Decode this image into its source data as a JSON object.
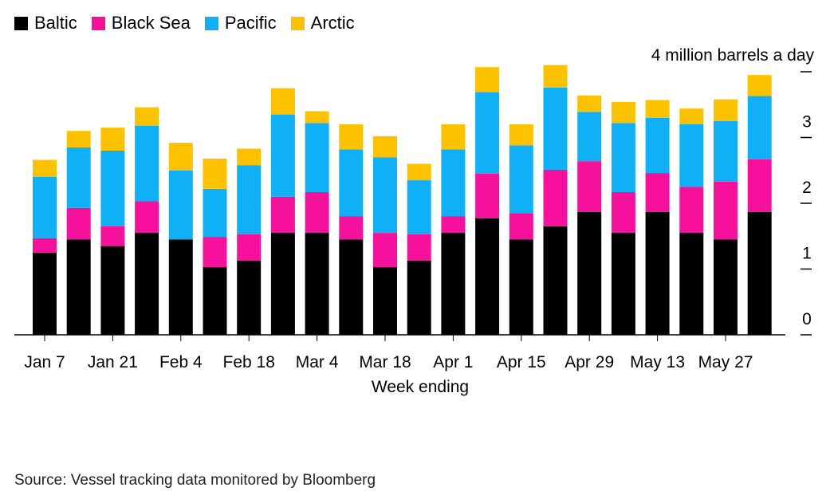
{
  "chart_data": {
    "type": "bar",
    "stacked": true,
    "title": "",
    "unit_label": "4 million barrels a day",
    "xlabel": "Week ending",
    "ylabel": "",
    "ylim": [
      0,
      4
    ],
    "yticks": [
      0,
      1,
      2,
      3
    ],
    "categories": [
      "Jan 7",
      "Jan 14",
      "Jan 21",
      "Jan 28",
      "Feb 4",
      "Feb 11",
      "Feb 18",
      "Feb 25",
      "Mar 4",
      "Mar 11",
      "Mar 18",
      "Mar 25",
      "Apr 1",
      "Apr 8",
      "Apr 15",
      "Apr 22",
      "Apr 29",
      "May 6",
      "May 13",
      "May 20",
      "May 27",
      "Jun 3"
    ],
    "xtick_labels": [
      "Jan 7",
      "Jan 21",
      "Feb 4",
      "Feb 18",
      "Mar 4",
      "Mar 18",
      "Apr 1",
      "Apr 15",
      "Apr 29",
      "May 13",
      "May 27"
    ],
    "series": [
      {
        "name": "Baltic",
        "color": "#000000",
        "values": [
          1.25,
          1.45,
          1.35,
          1.55,
          1.45,
          1.03,
          1.13,
          1.55,
          1.55,
          1.45,
          1.03,
          1.13,
          1.55,
          1.77,
          1.45,
          1.65,
          1.87,
          1.55,
          1.87,
          1.55,
          1.45,
          1.87
        ]
      },
      {
        "name": "Black Sea",
        "color": "#f5119b",
        "values": [
          0.22,
          0.48,
          0.3,
          0.48,
          0.0,
          0.46,
          0.4,
          0.55,
          0.62,
          0.35,
          0.52,
          0.4,
          0.25,
          0.68,
          0.4,
          0.86,
          0.77,
          0.62,
          0.59,
          0.7,
          0.88,
          0.8
        ]
      },
      {
        "name": "Pacific",
        "color": "#0fb0f5",
        "values": [
          0.93,
          0.92,
          1.15,
          1.15,
          1.05,
          0.73,
          1.05,
          1.25,
          1.05,
          1.02,
          1.15,
          0.82,
          1.02,
          1.24,
          1.03,
          1.25,
          0.75,
          1.05,
          0.84,
          0.95,
          0.92,
          0.96
        ]
      },
      {
        "name": "Arctic",
        "color": "#fcc200",
        "values": [
          0.26,
          0.25,
          0.35,
          0.28,
          0.42,
          0.46,
          0.25,
          0.4,
          0.18,
          0.38,
          0.32,
          0.25,
          0.38,
          0.38,
          0.32,
          0.34,
          0.25,
          0.32,
          0.27,
          0.24,
          0.33,
          0.32
        ]
      }
    ],
    "grid": false,
    "legend_position": "top-left"
  },
  "source": "Source: Vessel tracking data monitored by Bloomberg"
}
